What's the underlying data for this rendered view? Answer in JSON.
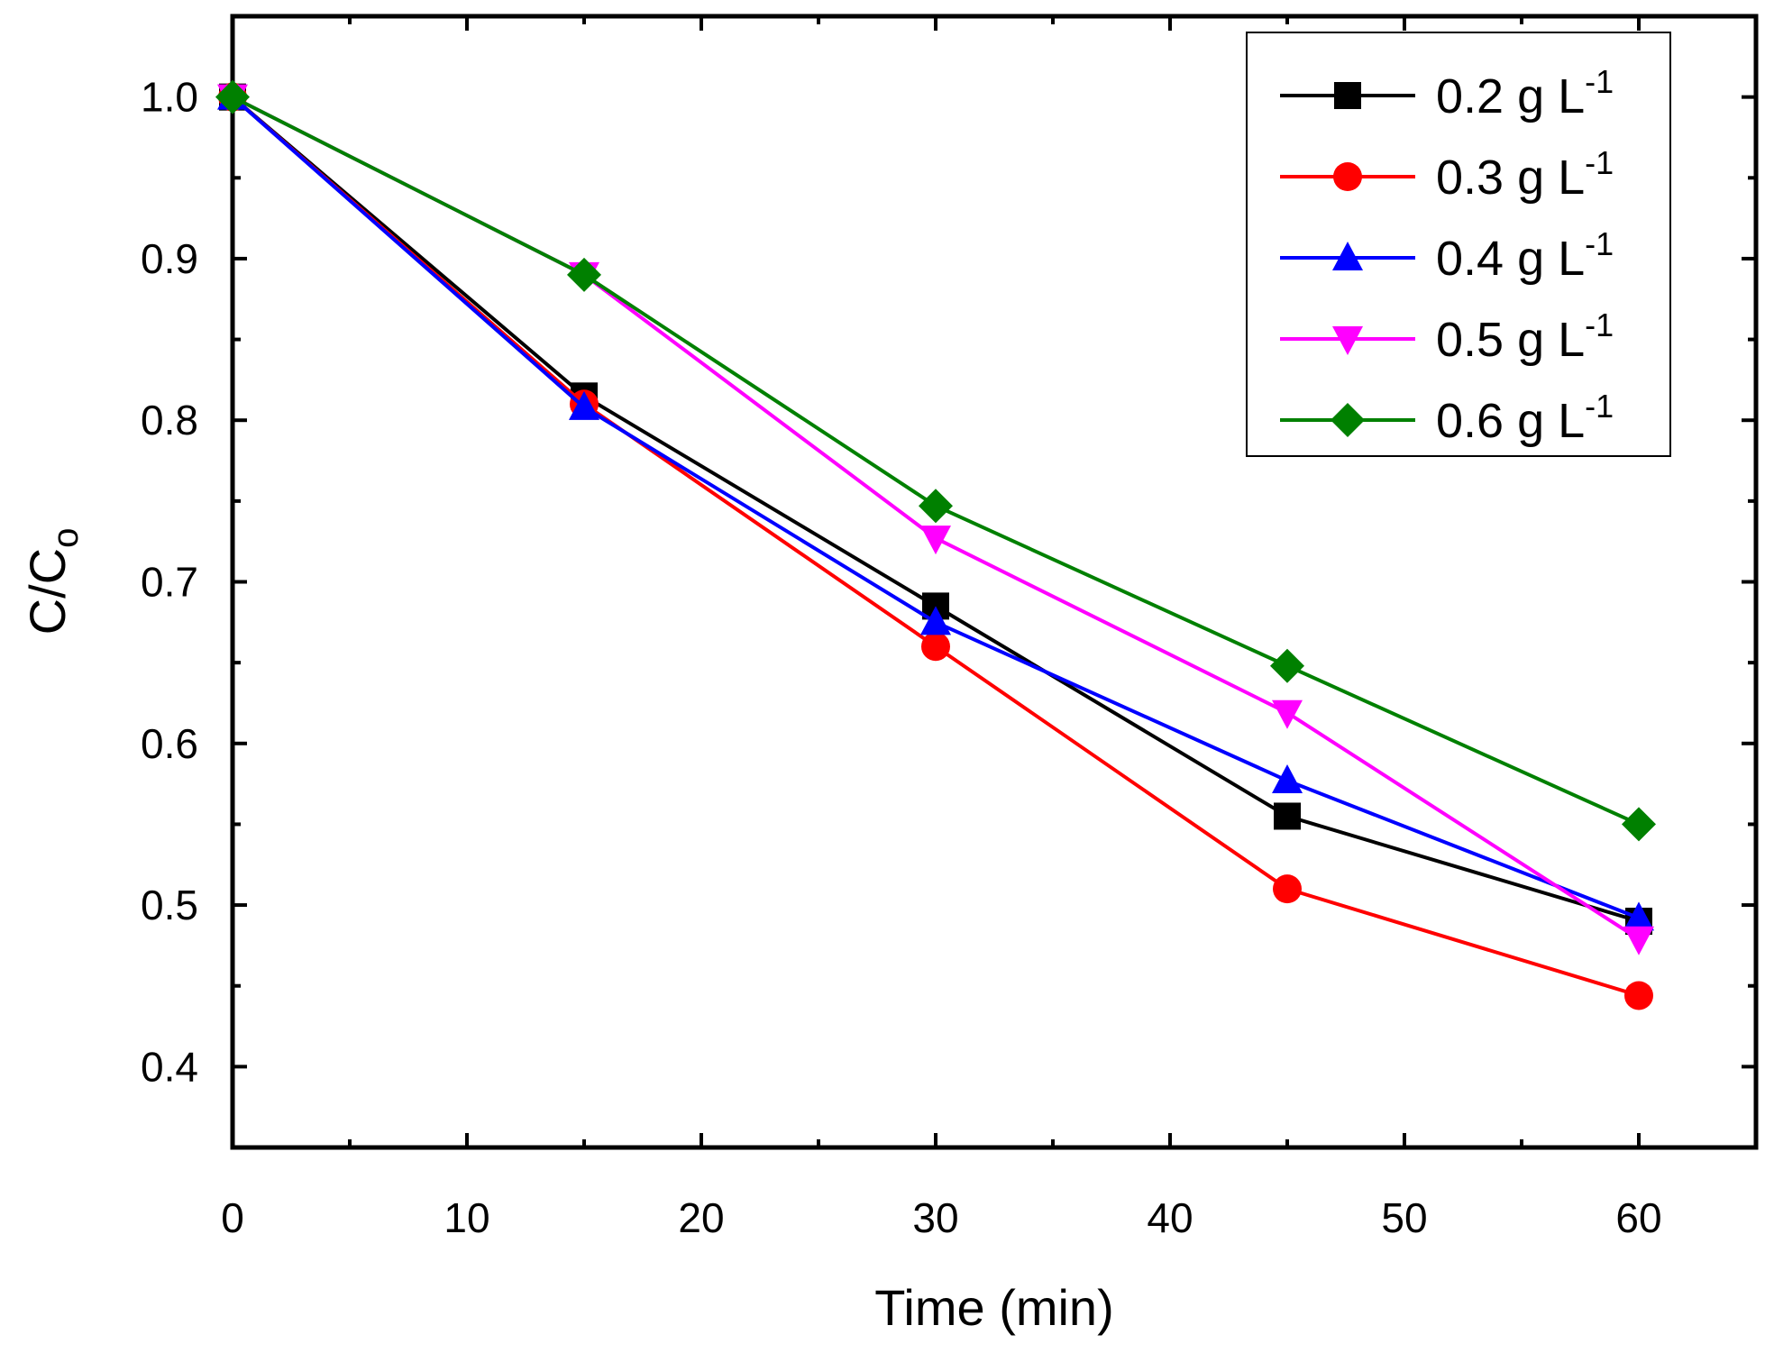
{
  "chart_data": {
    "type": "line",
    "title": "",
    "xlabel": "Time (min)",
    "ylabel": {
      "main": "C/C",
      "sub": "o"
    },
    "xlim": [
      0,
      65
    ],
    "ylim": [
      0.35,
      1.05
    ],
    "x_ticks": [
      "0",
      "10",
      "20",
      "30",
      "40",
      "50",
      "60"
    ],
    "y_ticks": [
      "0.4",
      "0.5",
      "0.6",
      "0.7",
      "0.8",
      "0.9",
      "1.0"
    ],
    "grid": false,
    "legend_position": "top-right",
    "x": [
      0,
      15,
      30,
      45,
      60
    ],
    "series": [
      {
        "name": "0.2 g L",
        "unit_exp": "-1",
        "color": "#000000",
        "marker": "square",
        "values": [
          1.0,
          0.815,
          0.685,
          0.555,
          0.49
        ]
      },
      {
        "name": "0.3 g L",
        "unit_exp": "-1",
        "color": "#ff0000",
        "marker": "circle",
        "values": [
          1.0,
          0.81,
          0.66,
          0.51,
          0.444
        ]
      },
      {
        "name": "0.4 g L",
        "unit_exp": "-1",
        "color": "#0000ff",
        "marker": "triangle-up",
        "values": [
          1.0,
          0.808,
          0.675,
          0.577,
          0.492
        ]
      },
      {
        "name": "0.5 g L",
        "unit_exp": "-1",
        "color": "#ff00ff",
        "marker": "triangle-down",
        "values": [
          1.0,
          0.89,
          0.727,
          0.619,
          0.479
        ]
      },
      {
        "name": "0.6 g L",
        "unit_exp": "-1",
        "color": "#008000",
        "marker": "diamond",
        "values": [
          1.0,
          0.89,
          0.747,
          0.648,
          0.55
        ]
      }
    ]
  }
}
